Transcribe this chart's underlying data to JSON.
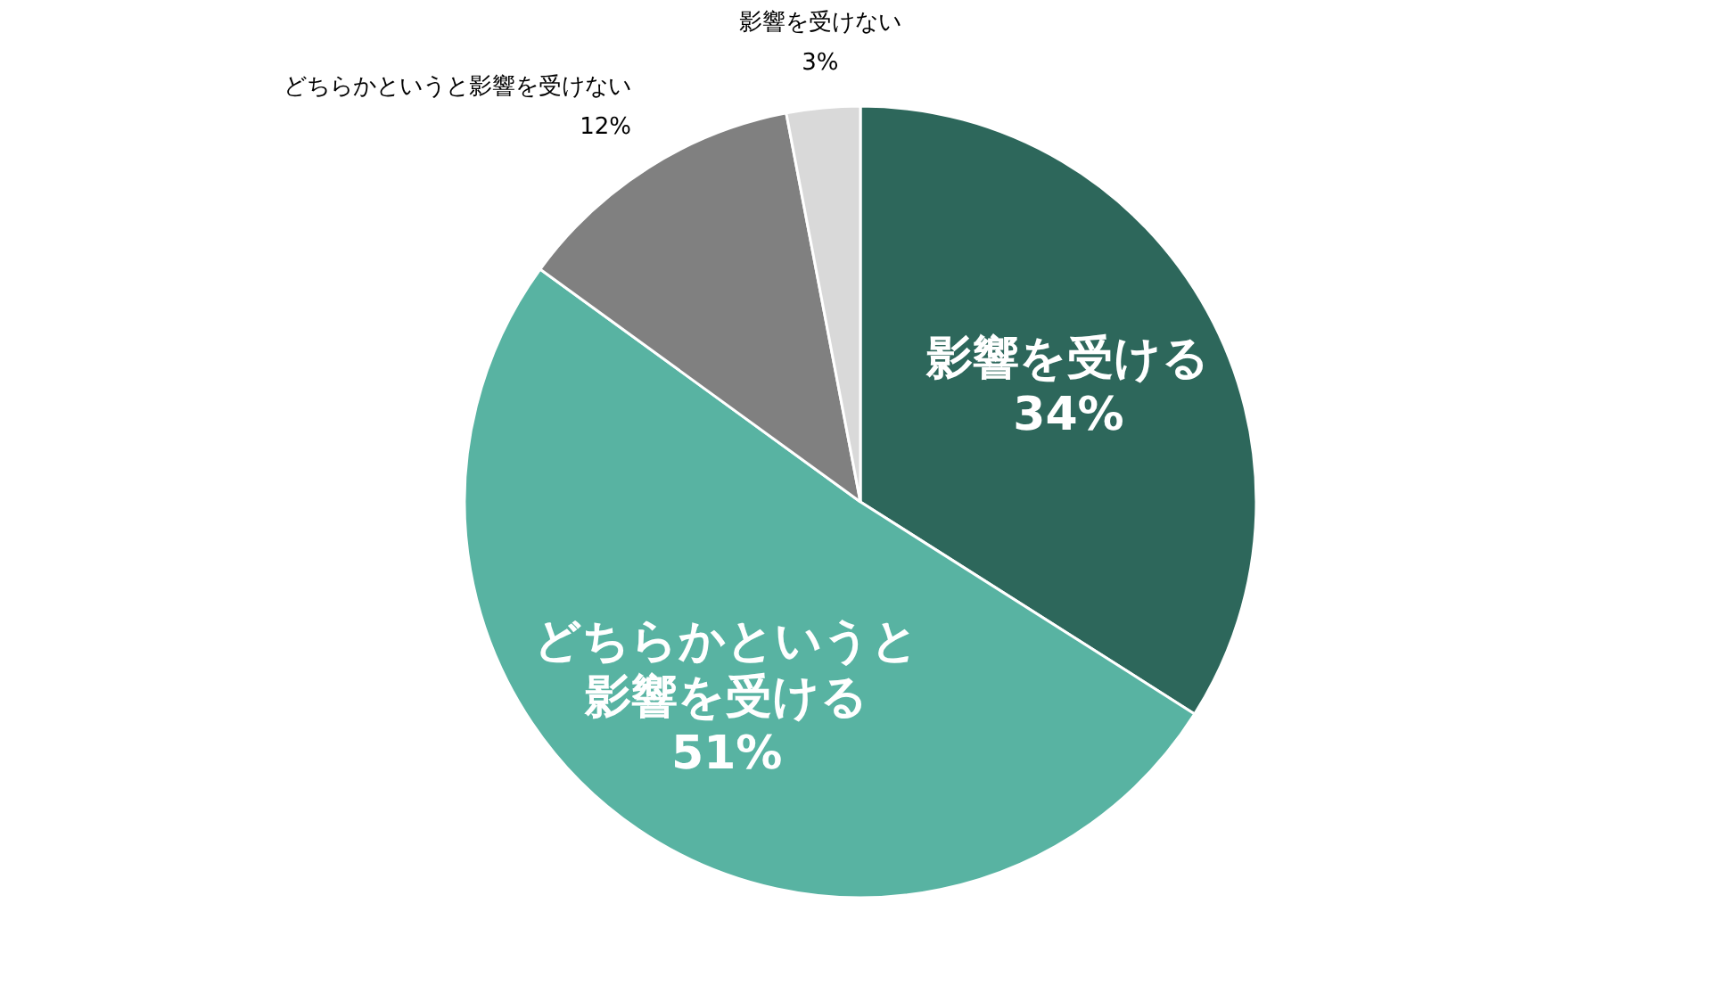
{
  "chart_data": {
    "type": "pie",
    "categories": [
      "影響を受ける",
      "どちらかというと影響を受ける",
      "どちらかというと影響を受けない",
      "影響を受けない"
    ],
    "values": [
      34,
      51,
      12,
      3
    ],
    "value_labels": [
      "34%",
      "51%",
      "12%",
      "3%"
    ],
    "colors": [
      "#2d675b",
      "#58b3a2",
      "#808080",
      "#d9d9d9"
    ],
    "legend": false
  }
}
